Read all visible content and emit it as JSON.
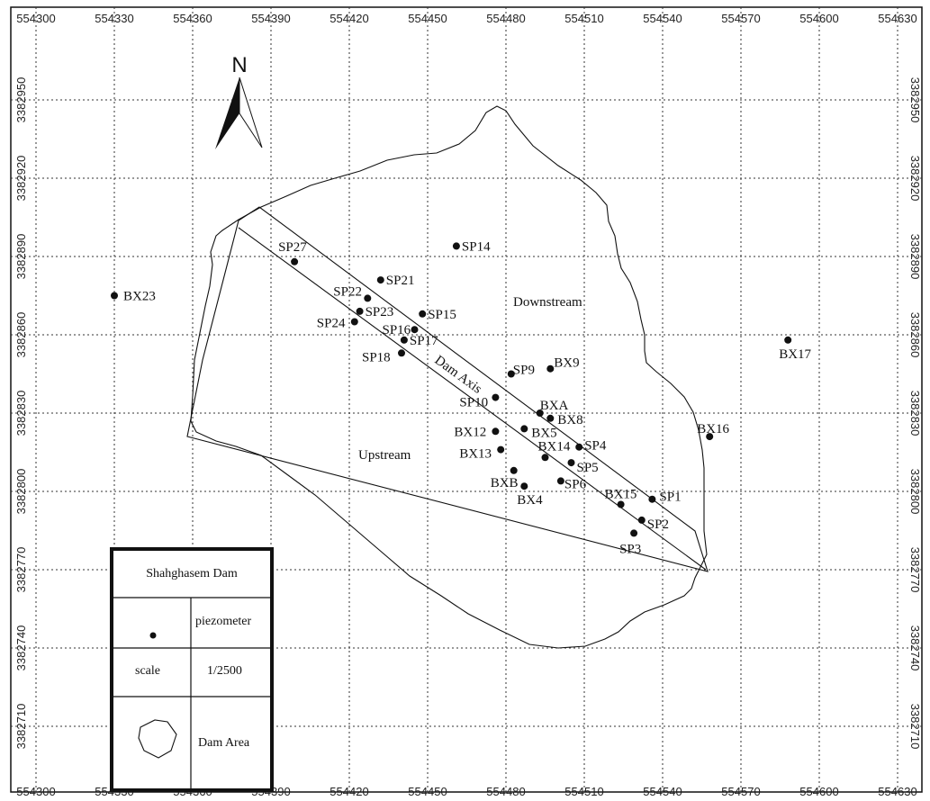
{
  "map": {
    "north_label": "N",
    "x_ticks": [
      "554300",
      "554330",
      "554360",
      "554390",
      "554420",
      "554450",
      "554480",
      "554510",
      "554540",
      "554570",
      "554600",
      "554630"
    ],
    "y_ticks": [
      "3382950",
      "3382920",
      "3382890",
      "3382860",
      "3382830",
      "3382800",
      "3382770",
      "3382740",
      "3382710"
    ],
    "area_labels": {
      "downstream": "Downstream",
      "upstream": "Upstream",
      "dam_axis": "Dam Axis"
    },
    "points": [
      {
        "name": "SP27",
        "e": 554399,
        "n": 3382888
      },
      {
        "name": "SP14",
        "e": 554461,
        "n": 3382894
      },
      {
        "name": "SP21",
        "e": 554432,
        "n": 3382881
      },
      {
        "name": "SP22",
        "e": 554427,
        "n": 3382874
      },
      {
        "name": "SP23",
        "e": 554424,
        "n": 3382869
      },
      {
        "name": "SP24",
        "e": 554422,
        "n": 3382865
      },
      {
        "name": "SP15",
        "e": 554448,
        "n": 3382868
      },
      {
        "name": "SP16",
        "e": 554445,
        "n": 3382862
      },
      {
        "name": "SP17",
        "e": 554441,
        "n": 3382858
      },
      {
        "name": "SP18",
        "e": 554440,
        "n": 3382853
      },
      {
        "name": "BX23",
        "e": 554330,
        "n": 3382875
      },
      {
        "name": "BX17",
        "e": 554588,
        "n": 3382858
      },
      {
        "name": "SP9",
        "e": 554482,
        "n": 3382845
      },
      {
        "name": "BX9",
        "e": 554497,
        "n": 3382847
      },
      {
        "name": "SP10",
        "e": 554476,
        "n": 3382836
      },
      {
        "name": "BXA",
        "e": 554493,
        "n": 3382830
      },
      {
        "name": "BX8",
        "e": 554497,
        "n": 3382828
      },
      {
        "name": "BX5",
        "e": 554487,
        "n": 3382824
      },
      {
        "name": "BX12",
        "e": 554476,
        "n": 3382823
      },
      {
        "name": "BX16",
        "e": 554558,
        "n": 3382821
      },
      {
        "name": "BX13",
        "e": 554478,
        "n": 3382816
      },
      {
        "name": "BX14",
        "e": 554495,
        "n": 3382813
      },
      {
        "name": "SP4",
        "e": 554508,
        "n": 3382817
      },
      {
        "name": "SP5",
        "e": 554505,
        "n": 3382811
      },
      {
        "name": "BXB",
        "e": 554483,
        "n": 3382808
      },
      {
        "name": "SP6",
        "e": 554501,
        "n": 3382804
      },
      {
        "name": "BX4",
        "e": 554487,
        "n": 3382802
      },
      {
        "name": "BX15",
        "e": 554524,
        "n": 3382795
      },
      {
        "name": "SP1",
        "e": 554536,
        "n": 3382797
      },
      {
        "name": "SP2",
        "e": 554532,
        "n": 3382789
      },
      {
        "name": "SP3",
        "e": 554529,
        "n": 3382784
      }
    ]
  },
  "legend": {
    "title": "Shahghasem Dam",
    "piezometer_label": "piezometer",
    "scale_label": "scale",
    "scale_value": "1/2500",
    "area_label": "Dam Area"
  }
}
